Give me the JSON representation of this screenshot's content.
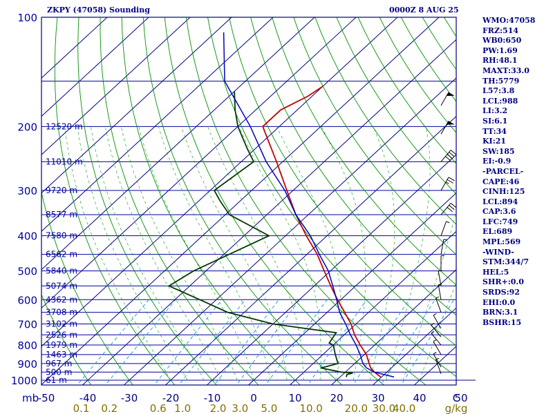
{
  "header": {
    "title": "ZKPY (47058) Sounding",
    "datetime": "0000Z  8 AUG 25"
  },
  "indices": [
    "WMO:47058",
    "FRZ:514",
    "WB0:650",
    "PW:1.69",
    "RH:48.1",
    "MAXT:33.0",
    "TH:5779",
    "L57:3.8",
    "LCL:988",
    "LI:3.2",
    "SI:6.1",
    "TT:34",
    "KI:21",
    "SW:185",
    "EI:-0.9",
    "-PARCEL-",
    "CAPE:46",
    "CINH:125",
    "LCL:894",
    "CAP:3.6",
    "LFC:749",
    "EL:689",
    "MPL:569",
    "-WIND-",
    "STM:344/7",
    "HEL:5",
    "SHR+:0.0",
    "SRDS:92",
    "EHI:0.0",
    "BRN:3.1",
    "BSHR:15"
  ],
  "colors": {
    "frame": "#000080",
    "isobar": "#0000a0",
    "isotherm": "#000080",
    "dry_adiabat": "#009000",
    "moist_adiabat": "#00a000",
    "mixing_ratio": "#1090e0",
    "temperature": "#c00000",
    "dewpoint": "#003800",
    "parcel": "#0000c0",
    "pressure_labels": "#0000a0",
    "temp_labels": "#000080",
    "mixing_labels": "#807000"
  },
  "chart_data": {
    "type": "line",
    "title": "ZKPY (47058) Sounding",
    "xlabel": "C",
    "ylabel": "mb",
    "log_y": true,
    "ylim": [
      1000,
      100
    ],
    "xlim": [
      -50,
      50
    ],
    "skewed_isotherms": true,
    "pressure_ticks": [
      100,
      200,
      300,
      400,
      500,
      600,
      700,
      800,
      900,
      1000
    ],
    "extra_isobars": [
      150,
      250,
      350,
      450,
      550,
      650,
      750,
      850,
      950
    ],
    "temperature_ticks": [
      "-50",
      "-40",
      "-30",
      "-20",
      "-10",
      "0",
      "10",
      "20",
      "30",
      "40",
      "50"
    ],
    "mixing_ratio_ticks": [
      "0.1",
      "0.2",
      "0.6",
      "1.0",
      "2.0",
      "3.0",
      "5.0",
      "10.0",
      "20.0",
      "30.0",
      "40.0"
    ],
    "mixing_ratio_values": [
      0.1,
      0.2,
      0.6,
      1.0,
      2.0,
      3.0,
      5.0,
      10.0,
      20.0,
      30.0,
      40.0
    ],
    "mixing_ratio_unit": "g/kg",
    "height_labels": [
      {
        "p": 200,
        "text": "12520 m"
      },
      {
        "p": 250,
        "text": "11010 m"
      },
      {
        "p": 300,
        "text": "9720 m"
      },
      {
        "p": 350,
        "text": "8577 m"
      },
      {
        "p": 400,
        "text": "7580 m"
      },
      {
        "p": 450,
        "text": "6562 m"
      },
      {
        "p": 500,
        "text": "5840 m"
      },
      {
        "p": 550,
        "text": "5074 m"
      },
      {
        "p": 600,
        "text": "4362 m"
      },
      {
        "p": 650,
        "text": "3708 m"
      },
      {
        "p": 700,
        "text": "3102 m"
      },
      {
        "p": 750,
        "text": "2526 m"
      },
      {
        "p": 800,
        "text": "1979 m"
      },
      {
        "p": 850,
        "text": "1463 m"
      },
      {
        "p": 900,
        "text": "967 m"
      },
      {
        "p": 950,
        "text": "500 m"
      },
      {
        "p": 1000,
        "text": "61 m"
      }
    ],
    "series": [
      {
        "key": "temperature",
        "points": [
          [
            980,
            29.8
          ],
          [
            950,
            27
          ],
          [
            925,
            25
          ],
          [
            900,
            23.5
          ],
          [
            850,
            20.5
          ],
          [
            800,
            16.5
          ],
          [
            750,
            12.5
          ],
          [
            700,
            8.8
          ],
          [
            650,
            4.2
          ],
          [
            600,
            -0.8
          ],
          [
            550,
            -6
          ],
          [
            500,
            -11.5
          ],
          [
            450,
            -17.5
          ],
          [
            400,
            -25
          ],
          [
            350,
            -33
          ],
          [
            300,
            -41.5
          ],
          [
            250,
            -51.5
          ],
          [
            200,
            -64
          ],
          [
            180,
            -64
          ],
          [
            165,
            -61
          ],
          [
            155,
            -60
          ]
        ]
      },
      {
        "key": "dewpoint",
        "points": [
          [
            980,
            21.5
          ],
          [
            965,
            21
          ],
          [
            955,
            22
          ],
          [
            950,
            19
          ],
          [
            925,
            13
          ],
          [
            900,
            16
          ],
          [
            850,
            13
          ],
          [
            800,
            10
          ],
          [
            790,
            8.5
          ],
          [
            740,
            7.5
          ],
          [
            700,
            -10
          ],
          [
            650,
            -24
          ],
          [
            600,
            -34
          ],
          [
            550,
            -45
          ],
          [
            500,
            -43
          ],
          [
            400,
            -34
          ],
          [
            350,
            -49
          ],
          [
            320,
            -55
          ],
          [
            300,
            -59
          ],
          [
            250,
            -57
          ],
          [
            230,
            -62
          ],
          [
            200,
            -70
          ],
          [
            180,
            -75
          ],
          [
            160,
            -80
          ]
        ]
      },
      {
        "key": "parcel",
        "points": [
          [
            980,
            33
          ],
          [
            950,
            27
          ],
          [
            925,
            24
          ],
          [
            900,
            22
          ],
          [
            850,
            19
          ],
          [
            800,
            15.5
          ],
          [
            750,
            11.5
          ],
          [
            700,
            7.5
          ],
          [
            650,
            3
          ],
          [
            600,
            -1
          ],
          [
            550,
            -5.5
          ],
          [
            500,
            -10.5
          ],
          [
            450,
            -17
          ],
          [
            400,
            -24
          ],
          [
            350,
            -33
          ],
          [
            300,
            -42
          ],
          [
            250,
            -54
          ],
          [
            200,
            -67
          ],
          [
            150,
            -85
          ],
          [
            110,
            -98
          ]
        ]
      }
    ],
    "wind_barbs_at_mb": [
      960,
      920,
      850,
      800,
      760,
      720,
      650,
      600,
      550,
      500,
      450,
      400,
      350,
      300,
      250,
      210,
      175
    ],
    "wind_barbs": [
      {
        "p": 960,
        "dir": 340,
        "spd": 5
      },
      {
        "p": 920,
        "dir": 330,
        "spd": 5
      },
      {
        "p": 850,
        "dir": 330,
        "spd": 5
      },
      {
        "p": 800,
        "dir": 320,
        "spd": 5
      },
      {
        "p": 760,
        "dir": 320,
        "spd": 5
      },
      {
        "p": 720,
        "dir": 330,
        "spd": 5
      },
      {
        "p": 650,
        "dir": 340,
        "spd": 5
      },
      {
        "p": 600,
        "dir": 350,
        "spd": 5
      },
      {
        "p": 550,
        "dir": 350,
        "spd": 5
      },
      {
        "p": 500,
        "dir": 360,
        "spd": 5
      },
      {
        "p": 450,
        "dir": 10,
        "spd": 5
      },
      {
        "p": 400,
        "dir": 20,
        "spd": 5
      },
      {
        "p": 350,
        "dir": 40,
        "spd": 30
      },
      {
        "p": 300,
        "dir": 30,
        "spd": 25
      },
      {
        "p": 250,
        "dir": 40,
        "spd": 40
      },
      {
        "p": 210,
        "dir": 30,
        "spd": 50
      },
      {
        "p": 175,
        "dir": 30,
        "spd": 50
      }
    ]
  }
}
